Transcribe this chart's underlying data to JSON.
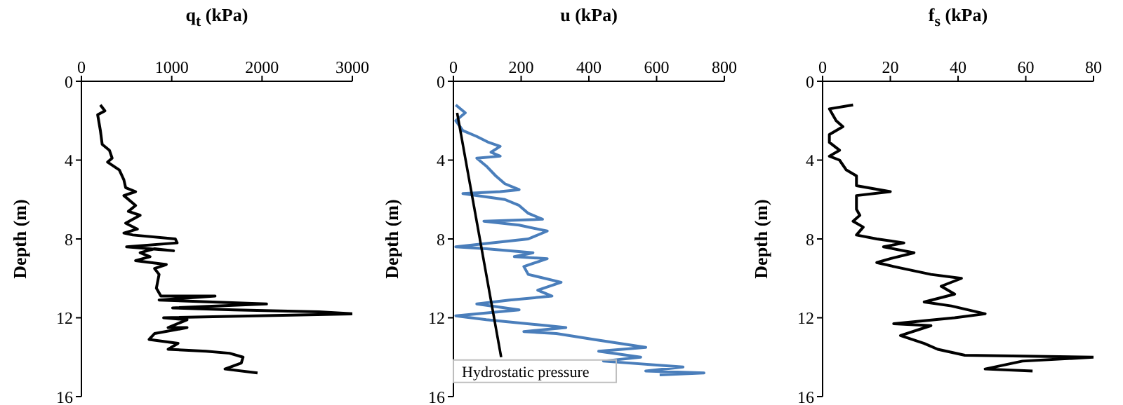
{
  "chart_data": [
    {
      "type": "line",
      "xlabel": "q$_{t}$ (kPa)",
      "ylabel": "Depth (m)",
      "xlim": [
        0,
        3000
      ],
      "xticks": [
        0,
        1000,
        2000,
        3000
      ],
      "ylim": [
        16,
        0
      ],
      "yticks": [
        0,
        4,
        8,
        12,
        16
      ],
      "marker": "none",
      "line_style": "solid",
      "series": [
        {
          "color": "#000000",
          "x": [
            210,
            260,
            180,
            210,
            230,
            310,
            340,
            290,
            420,
            470,
            490,
            600,
            470,
            600,
            520,
            650,
            490,
            620,
            470,
            570,
            1040,
            1060,
            500,
            1020,
            810,
            650,
            760,
            600,
            940,
            810,
            860,
            830,
            880,
            1480,
            860,
            2050,
            1010,
            1690,
            2630,
            3000,
            910,
            1170,
            960,
            1170,
            810,
            750,
            1070,
            960,
            1380,
            1640,
            1790,
            1770,
            1590,
            1950
          ],
          "values": [
            1.2,
            1.5,
            1.7,
            2.5,
            3.2,
            3.5,
            3.9,
            4.1,
            4.5,
            5.0,
            5.4,
            5.6,
            5.8,
            6.3,
            6.6,
            6.8,
            7.2,
            7.5,
            7.7,
            7.8,
            8.0,
            8.2,
            8.4,
            8.6,
            8.5,
            8.7,
            8.9,
            9.1,
            9.3,
            9.5,
            9.8,
            10.5,
            10.9,
            10.9,
            11.1,
            11.3,
            11.5,
            11.6,
            11.7,
            11.8,
            12.0,
            12.1,
            12.5,
            12.5,
            12.8,
            13.1,
            13.3,
            13.6,
            13.7,
            13.8,
            14.0,
            14.3,
            14.6,
            14.8
          ]
        }
      ]
    },
    {
      "type": "line",
      "xlabel": "u (kPa)",
      "ylabel": "Depth (m)",
      "xlim": [
        0,
        800
      ],
      "xticks": [
        0,
        200,
        400,
        600,
        800
      ],
      "ylim": [
        16,
        0
      ],
      "yticks": [
        0,
        4,
        8,
        12,
        16
      ],
      "marker": "none",
      "line_style": "solid",
      "series": [
        {
          "color": "#4a7ebb",
          "x": [
            7,
            35,
            7,
            28,
            69,
            104,
            138,
            111,
            138,
            69,
            97,
            125,
            152,
            194,
            138,
            28,
            152,
            194,
            221,
            263,
            90,
            194,
            277,
            221,
            7,
            97,
            235,
            180,
            277,
            208,
            221,
            318,
            249,
            291,
            166,
            69,
            194,
            7,
            97,
            277,
            332,
            208,
            304,
            415,
            568,
            429,
            553,
            443,
            678,
            568,
            740,
            609
          ],
          "values": [
            1.2,
            1.6,
            2.0,
            2.5,
            2.8,
            3.1,
            3.3,
            3.6,
            3.8,
            3.9,
            4.3,
            4.8,
            5.2,
            5.5,
            5.6,
            5.7,
            6.0,
            6.3,
            6.7,
            7.0,
            7.1,
            7.3,
            7.6,
            8.0,
            8.4,
            8.5,
            8.7,
            8.9,
            9.0,
            9.4,
            9.8,
            10.2,
            10.6,
            10.9,
            11.1,
            11.3,
            11.6,
            11.9,
            12.1,
            12.4,
            12.5,
            12.7,
            12.8,
            13.1,
            13.5,
            13.7,
            14.0,
            14.2,
            14.5,
            14.7,
            14.8,
            14.9
          ]
        },
        {
          "name": "Hydrostatic pressure",
          "color": "#000000",
          "x": [
            11,
            141
          ],
          "values": [
            1.6,
            14.0
          ]
        }
      ]
    },
    {
      "type": "line",
      "xlabel": "f$_{s}$ (kPa)",
      "ylabel": "Depth (m)",
      "xlim": [
        0,
        80
      ],
      "xticks": [
        0,
        20,
        40,
        60,
        80
      ],
      "ylim": [
        16,
        0
      ],
      "yticks": [
        0,
        4,
        8,
        12,
        16
      ],
      "marker": "none",
      "line_style": "solid",
      "series": [
        {
          "color": "#000000",
          "x": [
            9,
            2,
            4,
            6,
            2,
            2,
            5,
            2,
            5,
            7,
            10,
            10,
            20,
            10,
            10,
            11,
            9,
            12,
            10,
            16,
            24,
            18,
            27,
            20,
            16,
            21,
            32,
            41,
            35,
            39,
            30,
            38,
            48,
            39,
            21,
            32,
            23,
            30,
            34,
            42,
            80,
            59,
            48,
            62
          ],
          "values": [
            1.2,
            1.4,
            2.0,
            2.3,
            2.7,
            3.1,
            3.5,
            3.8,
            4.0,
            4.5,
            4.8,
            5.3,
            5.6,
            5.8,
            6.5,
            6.8,
            7.1,
            7.4,
            7.8,
            8.0,
            8.2,
            8.4,
            8.7,
            9.0,
            9.2,
            9.4,
            9.8,
            10.0,
            10.4,
            10.8,
            11.2,
            11.4,
            11.8,
            12.0,
            12.3,
            12.4,
            12.9,
            13.3,
            13.6,
            13.9,
            14.0,
            14.2,
            14.6,
            14.7
          ]
        }
      ]
    }
  ]
}
